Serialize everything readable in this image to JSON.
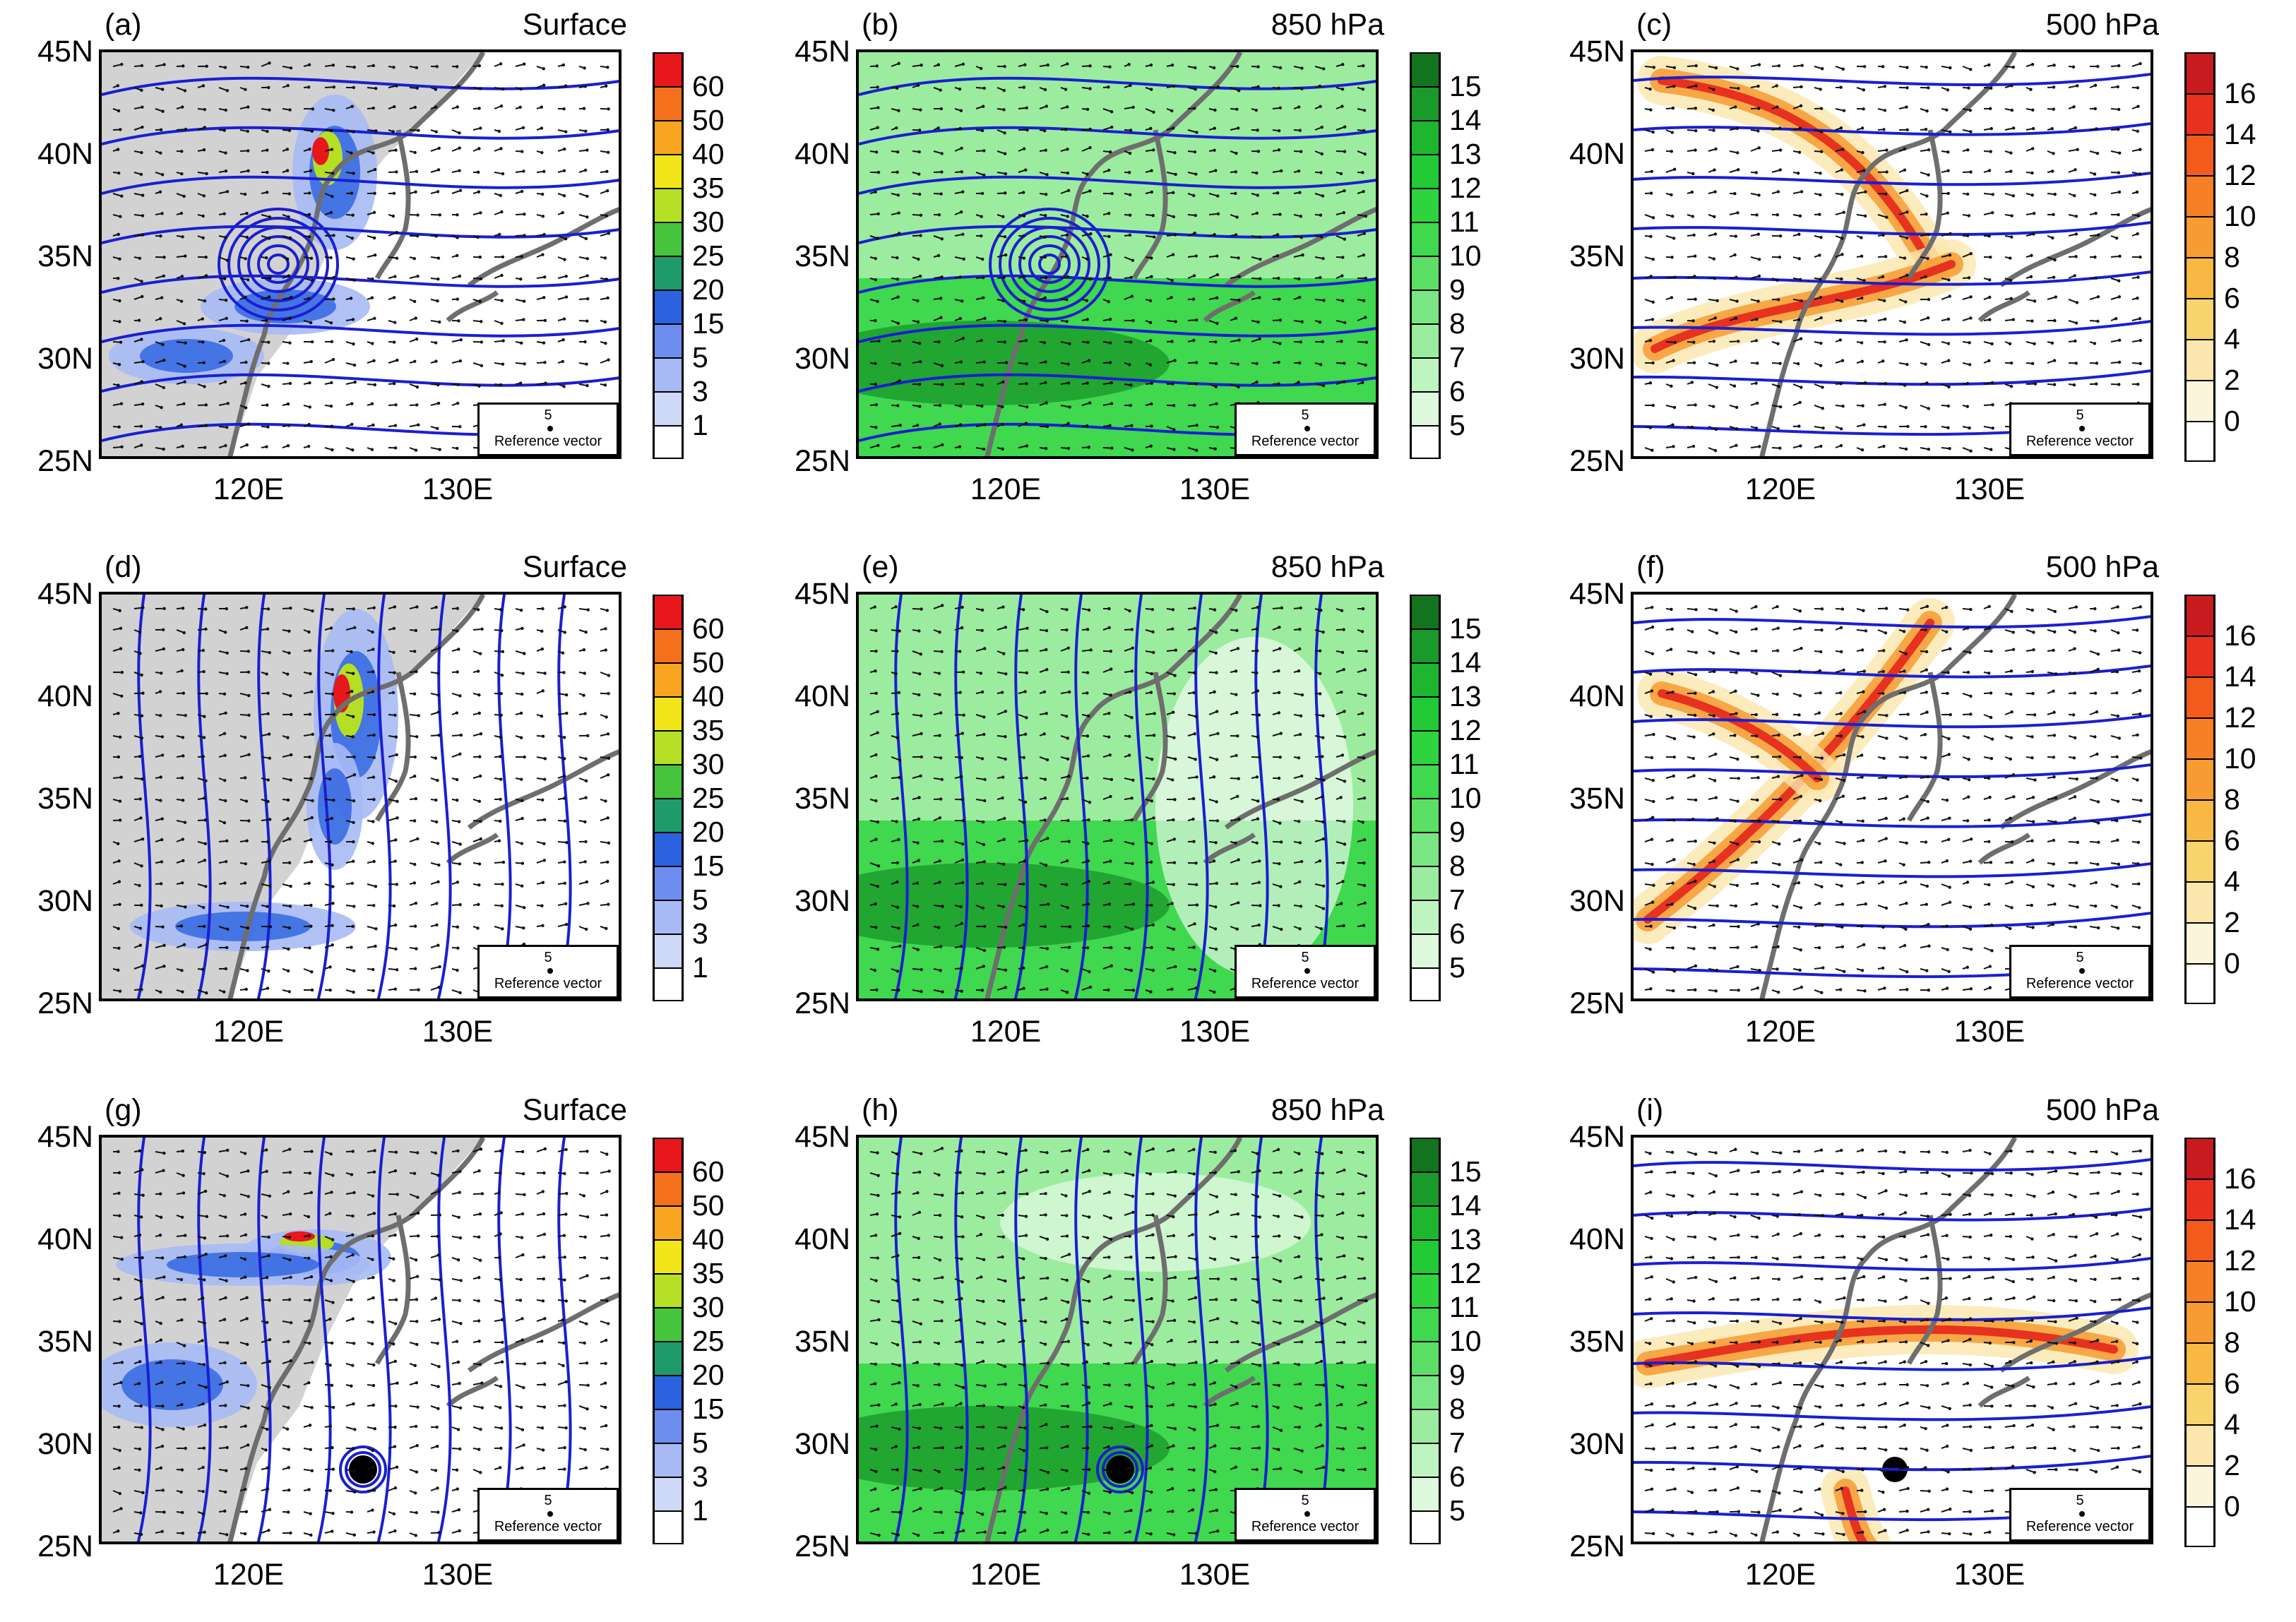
{
  "panels": [
    {
      "letter": "(a)",
      "level": "Surface",
      "type": "surface",
      "variant": 0
    },
    {
      "letter": "(b)",
      "level": "850 hPa",
      "type": "850",
      "variant": 0
    },
    {
      "letter": "(c)",
      "level": "500 hPa",
      "type": "500",
      "variant": 0
    },
    {
      "letter": "(d)",
      "level": "Surface",
      "type": "surface",
      "variant": 1
    },
    {
      "letter": "(e)",
      "level": "850 hPa",
      "type": "850",
      "variant": 1
    },
    {
      "letter": "(f)",
      "level": "500 hPa",
      "type": "500",
      "variant": 1
    },
    {
      "letter": "(g)",
      "level": "Surface",
      "type": "surface",
      "variant": 2
    },
    {
      "letter": "(h)",
      "level": "850 hPa",
      "type": "850",
      "variant": 2
    },
    {
      "letter": "(i)",
      "level": "500 hPa",
      "type": "500",
      "variant": 2
    }
  ],
  "lat_labels": [
    "45N",
    "40N",
    "35N",
    "30N",
    "25N"
  ],
  "lon_labels": [
    "120E",
    "130E"
  ],
  "reference_vector": {
    "magnitude": "5",
    "label": "Reference vector"
  },
  "colorbars": {
    "surface": {
      "labels": [
        "60",
        "50",
        "40",
        "35",
        "30",
        "25",
        "20",
        "15",
        "5",
        "3",
        "1"
      ],
      "colors": [
        "#e8171b",
        "#f5701d",
        "#f8a51f",
        "#f2e51a",
        "#b5df25",
        "#46c43c",
        "#1f9a6a",
        "#2c62e0",
        "#6d8ef0",
        "#a7baf5",
        "#ced9f7",
        "#ffffff"
      ]
    },
    "p850": {
      "labels": [
        "15",
        "14",
        "13",
        "12",
        "11",
        "10",
        "9",
        "8",
        "7",
        "6",
        "5"
      ],
      "colors": [
        "#14731f",
        "#1a9a2a",
        "#1eb52f",
        "#21c934",
        "#2ed33e",
        "#3fd84e",
        "#5bdf66",
        "#7ae583",
        "#9cec9f",
        "#bff3c0",
        "#ddf8dd",
        "#ffffff"
      ]
    },
    "p500": {
      "labels": [
        "16",
        "14",
        "12",
        "10",
        "8",
        "6",
        "4",
        "2",
        "0"
      ],
      "colors": [
        "#c81b1f",
        "#e6321f",
        "#f25b1c",
        "#f58026",
        "#f79b33",
        "#f8b843",
        "#f9d36e",
        "#fbe7ad",
        "#fdf4dc",
        "#ffffff"
      ]
    }
  },
  "colors": {
    "land": "#d2d2d2",
    "contour": "#1a1fd0",
    "coastline": "#6e6e6e",
    "vector": "#111111"
  }
}
